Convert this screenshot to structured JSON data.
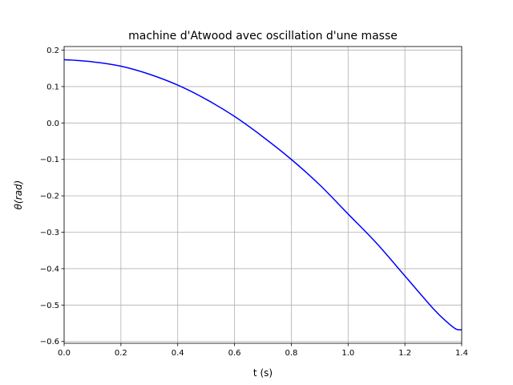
{
  "chart_data": {
    "type": "line",
    "title": "machine d'Atwood avec oscillation d'une masse",
    "xlabel": "t (s)",
    "ylabel_symbol": "θ",
    "ylabel_unit": "(rad)",
    "xlim": [
      0.0,
      1.4
    ],
    "ylim": [
      -0.605,
      0.21
    ],
    "xticks": [
      0.0,
      0.2,
      0.4,
      0.6,
      0.8,
      1.0,
      1.2,
      1.4
    ],
    "xtick_labels": [
      "0.0",
      "0.2",
      "0.4",
      "0.6",
      "0.8",
      "1.0",
      "1.2",
      "1.4"
    ],
    "yticks": [
      0.2,
      0.1,
      0.0,
      -0.1,
      -0.2,
      -0.3,
      -0.4,
      -0.5,
      -0.6
    ],
    "ytick_labels": [
      "0.2",
      "0.1",
      "0.0",
      "−0.1",
      "−0.2",
      "−0.3",
      "−0.4",
      "−0.5",
      "−0.6"
    ],
    "grid": true,
    "series": [
      {
        "color": "#0000ff",
        "x": [
          0.0,
          0.1,
          0.2,
          0.3,
          0.4,
          0.5,
          0.6,
          0.7,
          0.8,
          0.9,
          1.0,
          1.1,
          1.2,
          1.3,
          1.35,
          1.38,
          1.4
        ],
        "y": [
          0.174,
          0.168,
          0.156,
          0.134,
          0.104,
          0.065,
          0.018,
          -0.038,
          -0.1,
          -0.17,
          -0.25,
          -0.33,
          -0.42,
          -0.51,
          -0.548,
          -0.566,
          -0.568
        ]
      }
    ]
  }
}
